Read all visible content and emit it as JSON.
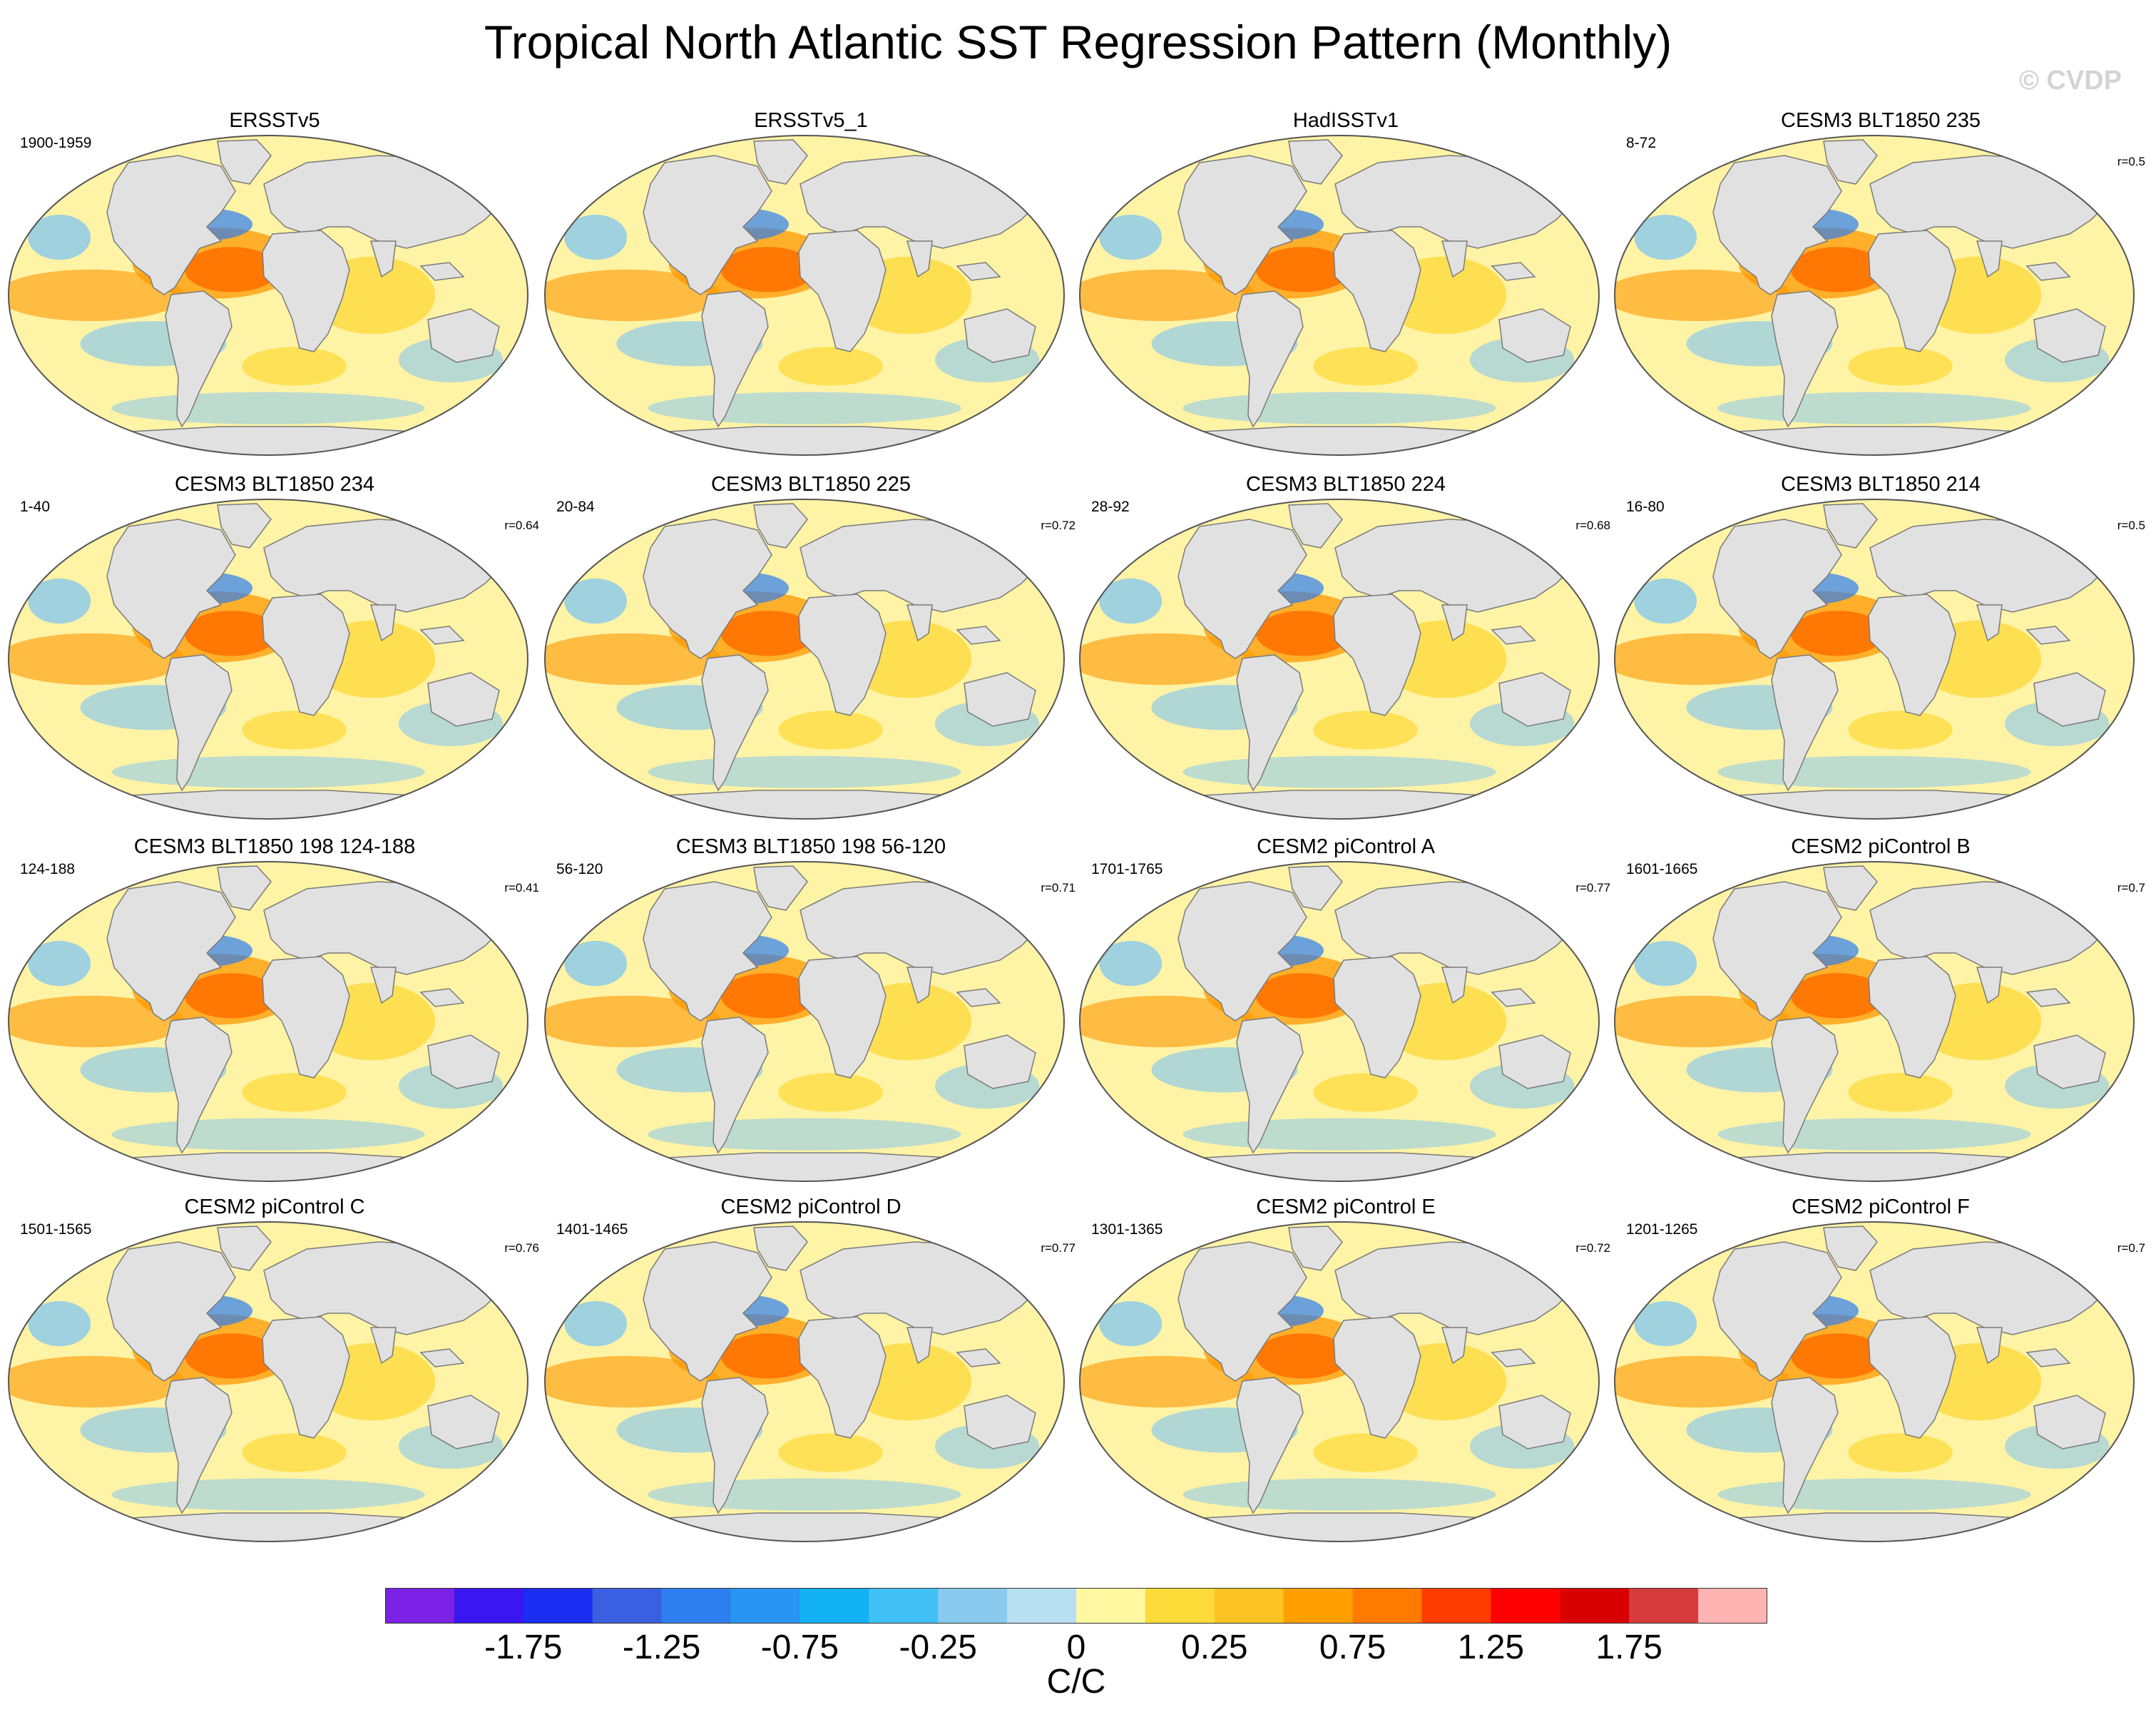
{
  "title": "Tropical North Atlantic SST Regression Pattern (Monthly)",
  "watermark": "© CVDP",
  "colors": {
    "land": "#e1e1e1",
    "coastline": "#7a7a7a",
    "warm_core": "#ff0000",
    "warm": "#ff9800",
    "mild": "#fdd835",
    "cool": "#87c8ee",
    "cold": "#2e7ef0"
  },
  "panels": [
    {
      "title": "ERSSTv5",
      "period": "1900-1959",
      "corr": ""
    },
    {
      "title": "ERSSTv5_1",
      "period": "",
      "corr": ""
    },
    {
      "title": "HadISSTv1",
      "period": "",
      "corr": ""
    },
    {
      "title": "CESM3 BLT1850 235",
      "period": "8-72",
      "corr": "r=0.5"
    },
    {
      "title": "CESM3 BLT1850 234",
      "period": "1-40",
      "corr": "r=0.64"
    },
    {
      "title": "CESM3 BLT1850 225",
      "period": "20-84",
      "corr": "r=0.72"
    },
    {
      "title": "CESM3 BLT1850 224",
      "period": "28-92",
      "corr": "r=0.68"
    },
    {
      "title": "CESM3 BLT1850 214",
      "period": "16-80",
      "corr": "r=0.5"
    },
    {
      "title": "CESM3 BLT1850 198 124-188",
      "period": "124-188",
      "corr": "r=0.41"
    },
    {
      "title": "CESM3 BLT1850 198 56-120",
      "period": "56-120",
      "corr": "r=0.71"
    },
    {
      "title": "CESM2 piControl A",
      "period": "1701-1765",
      "corr": "r=0.77"
    },
    {
      "title": "CESM2 piControl B",
      "period": "1601-1665",
      "corr": "r=0.7"
    },
    {
      "title": "CESM2 piControl C",
      "period": "1501-1565",
      "corr": "r=0.76"
    },
    {
      "title": "CESM2 piControl D",
      "period": "1401-1465",
      "corr": "r=0.77"
    },
    {
      "title": "CESM2 piControl E",
      "period": "1301-1365",
      "corr": "r=0.72"
    },
    {
      "title": "CESM2 piControl F",
      "period": "1201-1265",
      "corr": "r=0.7"
    }
  ],
  "colorbar": {
    "units": "C/C",
    "labels": [
      "-1.75",
      "-1.25",
      "-0.75",
      "-0.25",
      "0",
      "0.25",
      "0.75",
      "1.25",
      "1.75"
    ],
    "swatches": [
      "#7b22e6",
      "#3a17f2",
      "#1a2df0",
      "#3a5fe0",
      "#2e7ef0",
      "#2a94f3",
      "#12b2f5",
      "#40c0f4",
      "#88cbee",
      "#b8e0f3",
      "#fff8a0",
      "#fddc3a",
      "#fcc423",
      "#ff9f00",
      "#ff7a00",
      "#ff3d00",
      "#ff0000",
      "#d80000",
      "#d63a3a",
      "#ffb3b3"
    ]
  }
}
